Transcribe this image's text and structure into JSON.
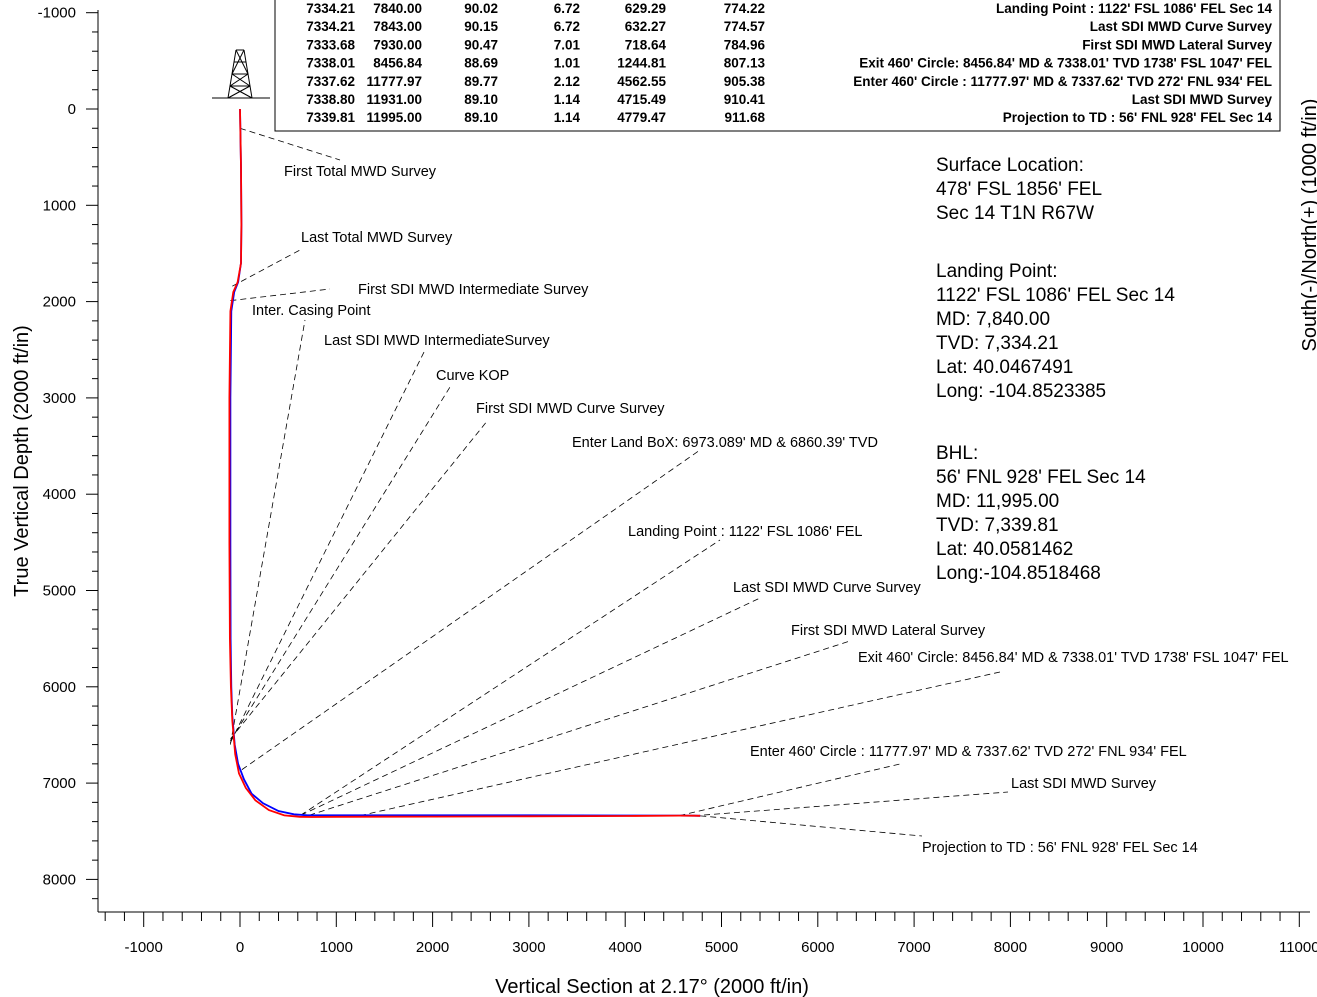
{
  "chart_data": {
    "type": "line",
    "xlabel": "Vertical Section at 2.17° (2000 ft/in)",
    "ylabel": "True Vertical Depth (2000 ft/in)",
    "right_label": "South(-)/North(+) (1000 ft/in)",
    "xlim": [
      -1400,
      11000
    ],
    "ylim": [
      -1100,
      8400
    ],
    "x_ticks": [
      "-1000",
      "0",
      "1000",
      "2000",
      "3000",
      "4000",
      "5000",
      "6000",
      "7000",
      "8000",
      "9000",
      "10000",
      "11000"
    ],
    "y_ticks": [
      "-1000",
      "0",
      "1000",
      "2000",
      "3000",
      "4000",
      "5000",
      "6000",
      "7000",
      "8000"
    ],
    "series": [
      {
        "color": "#0000ff",
        "x": [
          0,
          10,
          15,
          10,
          -20,
          -60,
          -90,
          -100,
          -100,
          -98,
          -90,
          -80,
          -55,
          -20,
          40,
          120,
          240,
          400,
          560,
          700,
          1000,
          2000,
          3000,
          4000,
          4562,
          4715,
          4779
        ],
        "y": [
          0,
          600,
          1200,
          1600,
          1800,
          1900,
          2100,
          3000,
          4500,
          5500,
          6000,
          6300,
          6600,
          6800,
          6960,
          7110,
          7210,
          7290,
          7324,
          7334,
          7334,
          7334,
          7334,
          7336,
          7338,
          7339,
          7340
        ]
      },
      {
        "color": "#ff0000",
        "x": [
          0,
          10,
          15,
          10,
          -25,
          -70,
          -100,
          -110,
          -110,
          -105,
          -95,
          -80,
          -50,
          -10,
          60,
          160,
          300,
          460,
          620,
          750,
          1000,
          2000,
          3000,
          4000,
          4562,
          4715,
          4779
        ],
        "y": [
          0,
          600,
          1200,
          1600,
          1800,
          1900,
          2100,
          3000,
          4500,
          5500,
          6000,
          6350,
          6700,
          6900,
          7050,
          7180,
          7280,
          7335,
          7350,
          7352,
          7350,
          7348,
          7345,
          7342,
          7338,
          7339,
          7340
        ]
      }
    ]
  },
  "survey_table": {
    "rows": [
      [
        "7334.21",
        "7840.00",
        "90.02",
        "6.72",
        "629.29",
        "774.22",
        "Landing Point : 1122' FSL  1086' FEL  Sec 14"
      ],
      [
        "7334.21",
        "7843.00",
        "90.15",
        "6.72",
        "632.27",
        "774.57",
        "Last SDI MWD Curve Survey"
      ],
      [
        "7333.68",
        "7930.00",
        "90.47",
        "7.01",
        "718.64",
        "784.96",
        "First SDI MWD Lateral Survey"
      ],
      [
        "7338.01",
        "8456.84",
        "88.69",
        "1.01",
        "1244.81",
        "807.13",
        "Exit 460' Circle: 8456.84' MD & 7338.01' TVD 1738' FSL  1047' FEL"
      ],
      [
        "7337.62",
        "11777.97",
        "89.77",
        "2.12",
        "4562.55",
        "905.38",
        "Enter 460' Circle : 11777.97' MD & 7337.62' TVD 272' FNL  934' FEL"
      ],
      [
        "7338.80",
        "11931.00",
        "89.10",
        "1.14",
        "4715.49",
        "910.41",
        "Last SDI MWD Survey"
      ],
      [
        "7339.81",
        "11995.00",
        "89.10",
        "1.14",
        "4779.47",
        "911.68",
        "Projection to TD : 56' FNL  928' FEL  Sec 14"
      ]
    ]
  },
  "annotations": [
    {
      "text": "First Total MWD Survey",
      "ax": 0,
      "ay": 200
    },
    {
      "text": "Last Total MWD Survey",
      "ax": -80,
      "ay": 1840
    },
    {
      "text": "First SDI MWD Intermediate Survey",
      "ax": -100,
      "ay": 1990
    },
    {
      "text": "Inter. Casing Point",
      "ax": -100,
      "ay": 6600
    },
    {
      "text": "Last SDI MWD IntermediateSurvey",
      "ax": -100,
      "ay": 6580
    },
    {
      "text": "Curve KOP",
      "ax": -100,
      "ay": 6560
    },
    {
      "text": "First SDI MWD Curve Survey",
      "ax": -98,
      "ay": 6540
    },
    {
      "text": "Enter Land BoX: 6973.089' MD & 6860.39' TVD",
      "ax": 20,
      "ay": 6860
    },
    {
      "text": "Landing Point : 1122' FSL  1086' FEL",
      "ax": 629,
      "ay": 7334
    },
    {
      "text": "Last SDI MWD Curve Survey",
      "ax": 632,
      "ay": 7334
    },
    {
      "text": "First SDI MWD Lateral Survey",
      "ax": 719,
      "ay": 7334
    },
    {
      "text": "Exit 460' Circle: 8456.84' MD & 7338.01' TVD 1738' FSL  1047' FEL",
      "ax": 1245,
      "ay": 7338
    },
    {
      "text": "Enter 460' Circle : 11777.97' MD & 7337.62' TVD 272' FNL  934' FEL",
      "ax": 4562,
      "ay": 7338
    },
    {
      "text": "Last SDI MWD Survey",
      "ax": 4715,
      "ay": 7339
    },
    {
      "text": "Projection to TD : 56' FNL  928' FEL  Sec 14",
      "ax": 4779,
      "ay": 7340
    }
  ],
  "info_blocks": {
    "surface": [
      "Surface Location:",
      "478' FSL 1856' FEL",
      "Sec 14 T1N R67W"
    ],
    "landing": [
      "Landing Point:",
      "1122' FSL 1086' FEL Sec 14",
      "MD: 7,840.00",
      "TVD: 7,334.21",
      "Lat: 40.0467491",
      "Long: -104.8523385"
    ],
    "bhl": [
      "BHL:",
      "56' FNL 928' FEL Sec 14",
      "MD: 11,995.00",
      "TVD: 7,339.81",
      "Lat: 40.0581462",
      "Long:-104.8518468"
    ]
  },
  "rig_icon": "drilling-rig-icon"
}
